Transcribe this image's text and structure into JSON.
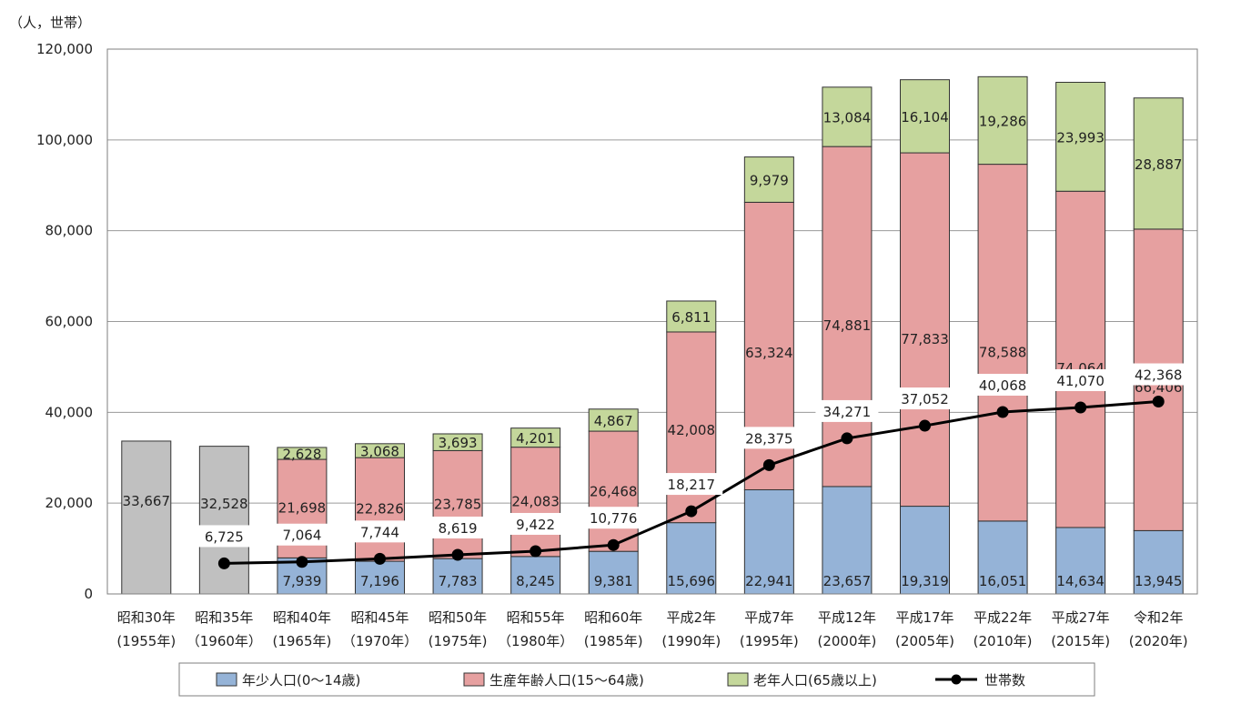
{
  "chart_data": {
    "type": "bar",
    "stacked": true,
    "unit_label": "（人，世帯）",
    "ylim": [
      0,
      120000
    ],
    "yticks": [
      0,
      20000,
      40000,
      60000,
      80000,
      100000,
      120000
    ],
    "ytick_labels": [
      "0",
      "20,000",
      "40,000",
      "60,000",
      "80,000",
      "100,000",
      "120,000"
    ],
    "categories": [
      {
        "era": "昭和30年",
        "year": "(1955年)"
      },
      {
        "era": "昭和35年",
        "year": "（1960年）"
      },
      {
        "era": "昭和40年",
        "year": "(1965年)"
      },
      {
        "era": "昭和45年",
        "year": "（1970年）"
      },
      {
        "era": "昭和50年",
        "year": "(1975年)"
      },
      {
        "era": "昭和55年",
        "year": "（1980年）"
      },
      {
        "era": "昭和60年",
        "year": "(1985年)"
      },
      {
        "era": "平成2年",
        "year": "(1990年)"
      },
      {
        "era": "平成7年",
        "year": "(1995年)"
      },
      {
        "era": "平成12年",
        "year": "(2000年)"
      },
      {
        "era": "平成17年",
        "year": "(2005年)"
      },
      {
        "era": "平成22年",
        "year": "(2010年)"
      },
      {
        "era": "平成27年",
        "year": "(2015年)"
      },
      {
        "era": "令和2年",
        "year": "(2020年)"
      }
    ],
    "totals": [
      {
        "value": 33667,
        "label": "33,667",
        "color": "#c0c0c0"
      },
      {
        "value": 32528,
        "label": "32,528",
        "color": "#c0c0c0"
      }
    ],
    "series": [
      {
        "name": "年少人口(0～14歳)",
        "color": "#95b3d7",
        "values": [
          null,
          null,
          7939,
          7196,
          7783,
          8245,
          9381,
          15696,
          22941,
          23657,
          19319,
          16051,
          14634,
          13945
        ],
        "labels": [
          "",
          "",
          "7,939",
          "7,196",
          "7,783",
          "8,245",
          "9,381",
          "15,696",
          "22,941",
          "23,657",
          "19,319",
          "16,051",
          "14,634",
          "13,945"
        ]
      },
      {
        "name": "生産年齢人口(15～64歳)",
        "color": "#e6a0a0",
        "values": [
          null,
          null,
          21698,
          22826,
          23785,
          24083,
          26468,
          42008,
          63324,
          74881,
          77833,
          78588,
          74064,
          66406
        ],
        "labels": [
          "",
          "",
          "21,698",
          "22,826",
          "23,785",
          "24,083",
          "26,468",
          "42,008",
          "63,324",
          "74,881",
          "77,833",
          "78,588",
          "74,064",
          "66,406"
        ]
      },
      {
        "name": "老年人口(65歳以上)",
        "color": "#c4d79b",
        "values": [
          null,
          null,
          2628,
          3068,
          3693,
          4201,
          4867,
          6811,
          9979,
          13084,
          16104,
          19286,
          23993,
          28887
        ],
        "labels": [
          "",
          "",
          "2,628",
          "3,068",
          "3,693",
          "4,201",
          "4,867",
          "6,811",
          "9,979",
          "13,084",
          "16,104",
          "19,286",
          "23,993",
          "28,887"
        ]
      }
    ],
    "line": {
      "name": "世帯数",
      "color": "#000000",
      "values": [
        null,
        6725,
        7064,
        7744,
        8619,
        9422,
        10776,
        18217,
        28375,
        34271,
        37052,
        40068,
        41070,
        42368
      ],
      "labels": [
        "",
        "6,725",
        "7,064",
        "7,744",
        "8,619",
        "9,422",
        "10,776",
        "18,217",
        "28,375",
        "34,271",
        "37,052",
        "40,068",
        "41,070",
        "42,368"
      ]
    },
    "legend": {
      "position": "bottom",
      "items": [
        "年少人口(0～14歳)",
        "生産年齢人口(15～64歳)",
        "老年人口(65歳以上)",
        "世帯数"
      ]
    },
    "grid": true
  }
}
